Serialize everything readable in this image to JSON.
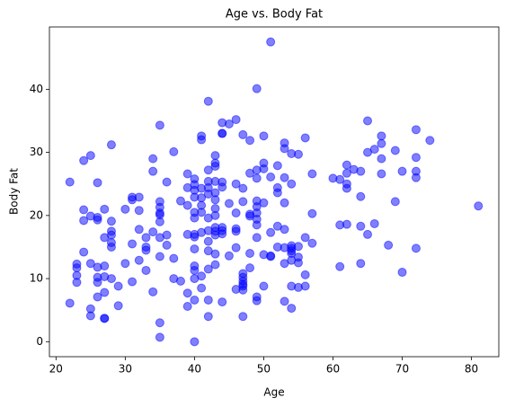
{
  "chart_data": {
    "type": "scatter",
    "title": "Age vs. Body Fat",
    "xlabel": "Age",
    "ylabel": "Body Fat",
    "color": "blue",
    "x": [
      22,
      22,
      23,
      23,
      23,
      23,
      24,
      24,
      24,
      24,
      25,
      25,
      25,
      25,
      25,
      26,
      26,
      26,
      26,
      26,
      26,
      26,
      27,
      27,
      27,
      27,
      27,
      27,
      27,
      28,
      28,
      28,
      28,
      28,
      28,
      28,
      29,
      29,
      30,
      30,
      31,
      31,
      31,
      31,
      32,
      32,
      32,
      32,
      33,
      33,
      33,
      33,
      34,
      34,
      34,
      34,
      35,
      35,
      35,
      35,
      35,
      35,
      35,
      35,
      35,
      35,
      36,
      36,
      36,
      37,
      37,
      37,
      38,
      38,
      39,
      39,
      39,
      39,
      39,
      39,
      40,
      40,
      40,
      40,
      40,
      40,
      40,
      40,
      40,
      40,
      40,
      40,
      40,
      40,
      41,
      41,
      41,
      41,
      41,
      41,
      41,
      41,
      41,
      42,
      42,
      42,
      42,
      42,
      42,
      42,
      42,
      42,
      42,
      42,
      42,
      43,
      43,
      43,
      43,
      43,
      43,
      43,
      43,
      43,
      43,
      43,
      43,
      43,
      44,
      44,
      44,
      44,
      44,
      44,
      44,
      44,
      44,
      45,
      45,
      45,
      46,
      46,
      46,
      46,
      46,
      46,
      46,
      47,
      47,
      47,
      47,
      47,
      47,
      47,
      47,
      47,
      47,
      48,
      48,
      48,
      48,
      48,
      48,
      49,
      49,
      49,
      49,
      49,
      49,
      49,
      49,
      49,
      49,
      49,
      50,
      50,
      50,
      50,
      50,
      50,
      51,
      51,
      51,
      51,
      51,
      52,
      52,
      52,
      52,
      52,
      53,
      53,
      53,
      53,
      53,
      53,
      53,
      53,
      54,
      54,
      54,
      54,
      54,
      54,
      54,
      54,
      54,
      55,
      55,
      55,
      55,
      55,
      56,
      56,
      56,
      56,
      57,
      57,
      57,
      60,
      61,
      61,
      61,
      62,
      62,
      62,
      62,
      62,
      63,
      64,
      64,
      64,
      64,
      65,
      65,
      65,
      66,
      66,
      67,
      67,
      67,
      67,
      68,
      69,
      69,
      70,
      70,
      72,
      72,
      72,
      72,
      72,
      74,
      81
    ],
    "values": [
      25.3,
      6.1,
      12.3,
      11.7,
      9.4,
      10.5,
      28.7,
      20.9,
      19.2,
      14.2,
      29.5,
      19.9,
      12.4,
      5.2,
      4.1,
      25.2,
      19.7,
      19.3,
      11.8,
      10.2,
      9.4,
      7.1,
      21.0,
      16.5,
      12.0,
      10.3,
      7.8,
      3.7,
      3.7,
      31.2,
      19.1,
      17.5,
      16.9,
      15.7,
      15.0,
      10.0,
      8.8,
      5.7,
      21.0,
      12.4,
      22.9,
      22.5,
      15.5,
      9.5,
      22.9,
      20.8,
      17.8,
      12.9,
      16.5,
      15.0,
      14.5,
      11.3,
      29.0,
      27.0,
      17.4,
      7.9,
      34.3,
      22.2,
      21.3,
      20.4,
      20.1,
      19.0,
      16.5,
      13.5,
      3.0,
      0.7,
      25.3,
      16.9,
      15.3,
      30.1,
      13.2,
      10.0,
      22.3,
      9.6,
      26.6,
      24.4,
      21.6,
      17.0,
      7.7,
      5.6,
      25.8,
      24.9,
      24.0,
      22.9,
      20.5,
      19.6,
      17.0,
      16.6,
      14.7,
      12.0,
      11.3,
      10.0,
      6.6,
      0.0,
      32.6,
      32.0,
      24.3,
      22.8,
      21.6,
      20.5,
      17.3,
      10.4,
      8.5,
      38.1,
      27.2,
      25.4,
      24.4,
      23.4,
      19.6,
      17.6,
      15.9,
      14.4,
      11.5,
      6.6,
      4.0,
      29.5,
      28.3,
      27.8,
      25.4,
      23.6,
      22.5,
      21.1,
      20.0,
      18.1,
      17.5,
      16.9,
      13.9,
      12.2,
      34.7,
      33.0,
      33.0,
      25.3,
      24.5,
      18.1,
      17.6,
      17.1,
      6.3,
      34.5,
      21.9,
      13.6,
      35.2,
      25.0,
      20.4,
      17.9,
      17.5,
      14.9,
      8.3,
      32.8,
      24.3,
      22.2,
      10.8,
      10.2,
      9.6,
      9.1,
      8.8,
      8.2,
      4.0,
      31.9,
      26.7,
      20.2,
      19.9,
      14.0,
      11.7,
      40.1,
      27.2,
      25.9,
      22.3,
      21.4,
      20.4,
      19.4,
      18.5,
      16.5,
      7.1,
      6.5,
      32.6,
      28.3,
      27.4,
      22.0,
      13.8,
      8.8,
      47.5,
      26.1,
      17.3,
      13.6,
      13.5,
      27.9,
      24.4,
      23.6,
      18.3,
      15.0,
      31.5,
      30.6,
      26.0,
      22.0,
      17.8,
      14.9,
      12.4,
      6.4,
      29.8,
      25.0,
      15.2,
      14.8,
      14.4,
      14.0,
      12.9,
      8.8,
      5.3,
      29.7,
      15.1,
      13.4,
      12.5,
      8.6,
      32.3,
      16.5,
      10.6,
      8.8,
      26.6,
      20.3,
      15.6,
      25.9,
      25.7,
      18.5,
      11.9,
      28.0,
      26.7,
      25.0,
      24.3,
      18.6,
      27.3,
      27.0,
      23.0,
      18.3,
      12.4,
      35.0,
      30.0,
      17.0,
      30.5,
      18.7,
      32.6,
      31.4,
      29.0,
      26.6,
      15.3,
      30.3,
      22.2,
      27.0,
      11.0,
      33.6,
      29.2,
      27.0,
      26.0,
      14.8,
      31.9,
      21.5
    ],
    "xlim": [
      19.05,
      83.95
    ],
    "xticks": [
      20,
      30,
      40,
      50,
      60,
      70,
      80
    ],
    "ylim": [
      -2.375,
      49.875
    ],
    "yticks": [
      0,
      10,
      20,
      30,
      40
    ]
  }
}
